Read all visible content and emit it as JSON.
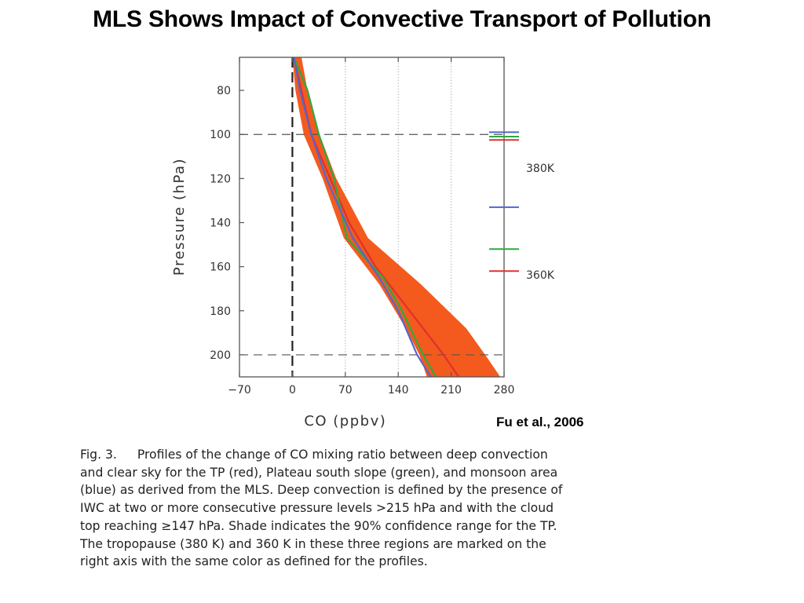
{
  "slide": {
    "title": "MLS Shows Impact of Convective Transport of Pollution",
    "citation": "Fu et al., 2006"
  },
  "caption": {
    "label": "Fig. 3.",
    "lines": [
      "Profiles of the change of CO mixing ratio between deep convection",
      "and clear sky for the TP (red), Plateau south slope (green), and monsoon area",
      "(blue) as derived from the MLS. Deep convection is defined by the presence of",
      "IWC at two or more consecutive pressure levels >215 hPa and with the cloud",
      "top reaching ≥147 hPa. Shade indicates the 90% confidence range for the TP.",
      "The tropopause (380 K) and 360 K in these three regions are marked on the",
      "right axis with the same color as defined for the profiles."
    ]
  },
  "chart_data": {
    "type": "line",
    "xlabel": "CO (ppbv)",
    "ylabel": "Pressure (hPa)",
    "xlim": [
      -70,
      280
    ],
    "ylim": [
      210,
      65
    ],
    "x_ticks": [
      -70,
      0,
      70,
      140,
      210,
      280
    ],
    "x_tick_labels": [
      "−70",
      "0",
      "70",
      "140",
      "210",
      "280"
    ],
    "y_ticks": [
      80,
      100,
      120,
      140,
      160,
      180,
      200
    ],
    "y_tick_labels": [
      "80",
      "100",
      "120",
      "140",
      "160",
      "180",
      "200"
    ],
    "reference_lines": {
      "x": [
        0
      ],
      "y": [
        100,
        200
      ]
    },
    "dotted_gridlines_x": [
      70,
      140,
      210
    ],
    "series": [
      {
        "color": "#e03030",
        "points": [
          [
            2,
            65
          ],
          [
            12,
            80
          ],
          [
            25,
            100
          ],
          [
            50,
            120
          ],
          [
            75,
            140
          ],
          [
            110,
            160
          ],
          [
            155,
            180
          ],
          [
            200,
            200
          ],
          [
            220,
            210
          ]
        ]
      },
      {
        "color": "#2eaa3e",
        "points": [
          [
            2,
            65
          ],
          [
            20,
            80
          ],
          [
            35,
            100
          ],
          [
            55,
            120
          ],
          [
            72,
            147
          ],
          [
            120,
            165
          ],
          [
            145,
            180
          ],
          [
            173,
            200
          ],
          [
            190,
            210
          ]
        ]
      },
      {
        "color": "#5566cc",
        "points": [
          [
            2,
            65
          ],
          [
            10,
            80
          ],
          [
            25,
            100
          ],
          [
            45,
            120
          ],
          [
            80,
            147
          ],
          [
            115,
            165
          ],
          [
            140,
            180
          ],
          [
            165,
            200
          ],
          [
            183,
            210
          ]
        ]
      }
    ],
    "confidence_band": {
      "color": "#f45a1e",
      "lower": [
        [
          0,
          65
        ],
        [
          4,
          80
        ],
        [
          15,
          100
        ],
        [
          40,
          120
        ],
        [
          68,
          147
        ],
        [
          115,
          168
        ],
        [
          150,
          188
        ],
        [
          168,
          200
        ],
        [
          178,
          210
        ]
      ],
      "upper": [
        [
          12,
          65
        ],
        [
          20,
          80
        ],
        [
          36,
          100
        ],
        [
          58,
          120
        ],
        [
          100,
          147
        ],
        [
          170,
          168
        ],
        [
          230,
          188
        ],
        [
          255,
          200
        ],
        [
          275,
          210
        ]
      ]
    },
    "right_axis_markers": [
      {
        "label": "380K",
        "markers": [
          {
            "color": "#5566cc",
            "pressure": 99
          },
          {
            "color": "#2eaa3e",
            "pressure": 101
          },
          {
            "color": "#e03030",
            "pressure": 102.5
          }
        ]
      },
      {
        "label": "360K",
        "markers": [
          {
            "color": "#5566cc",
            "pressure": 133
          },
          {
            "color": "#2eaa3e",
            "pressure": 152
          },
          {
            "color": "#e03030",
            "pressure": 162
          }
        ]
      }
    ]
  }
}
